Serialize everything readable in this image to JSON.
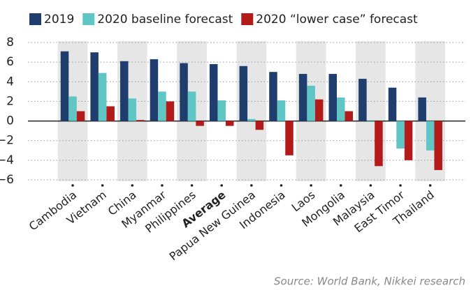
{
  "chart_data": {
    "type": "bar",
    "source": "Source: World Bank, Nikkei research",
    "categories": [
      "Cambodia",
      "Vietnam",
      "China",
      "Myanmar",
      "Philippines",
      "Average",
      "Papua New Guinea",
      "Indonesia",
      "Laos",
      "Mongolia",
      "Malaysia",
      "East Timor",
      "Thailand"
    ],
    "bold_category_index": 5,
    "series": [
      {
        "name": "2019",
        "color": "#1f3e6d",
        "values": [
          7.1,
          7.0,
          6.1,
          6.3,
          5.9,
          5.8,
          5.6,
          5.0,
          4.8,
          4.8,
          4.3,
          3.4,
          2.4
        ]
      },
      {
        "name": "2020 baseline forecast",
        "color": "#5fc5c5",
        "values": [
          2.5,
          4.9,
          2.3,
          3.0,
          3.0,
          2.1,
          0.2,
          2.1,
          3.6,
          2.4,
          -0.1,
          -2.8,
          -3.0
        ]
      },
      {
        "name": "2020 “lower case” forecast",
        "color": "#b31b1b",
        "values": [
          1.0,
          1.5,
          0.1,
          2.0,
          -0.5,
          -0.5,
          -0.9,
          -3.5,
          2.2,
          1.0,
          -4.6,
          -4.0,
          -5.0
        ]
      }
    ],
    "ylim": [
      -6,
      8
    ],
    "yticks": [
      {
        "value": -6,
        "label": "−6"
      },
      {
        "value": -4,
        "label": "−4"
      },
      {
        "value": -2,
        "label": "−2"
      },
      0,
      2,
      4,
      6,
      8
    ],
    "grid": true,
    "band_color": "#e6e6e6"
  }
}
